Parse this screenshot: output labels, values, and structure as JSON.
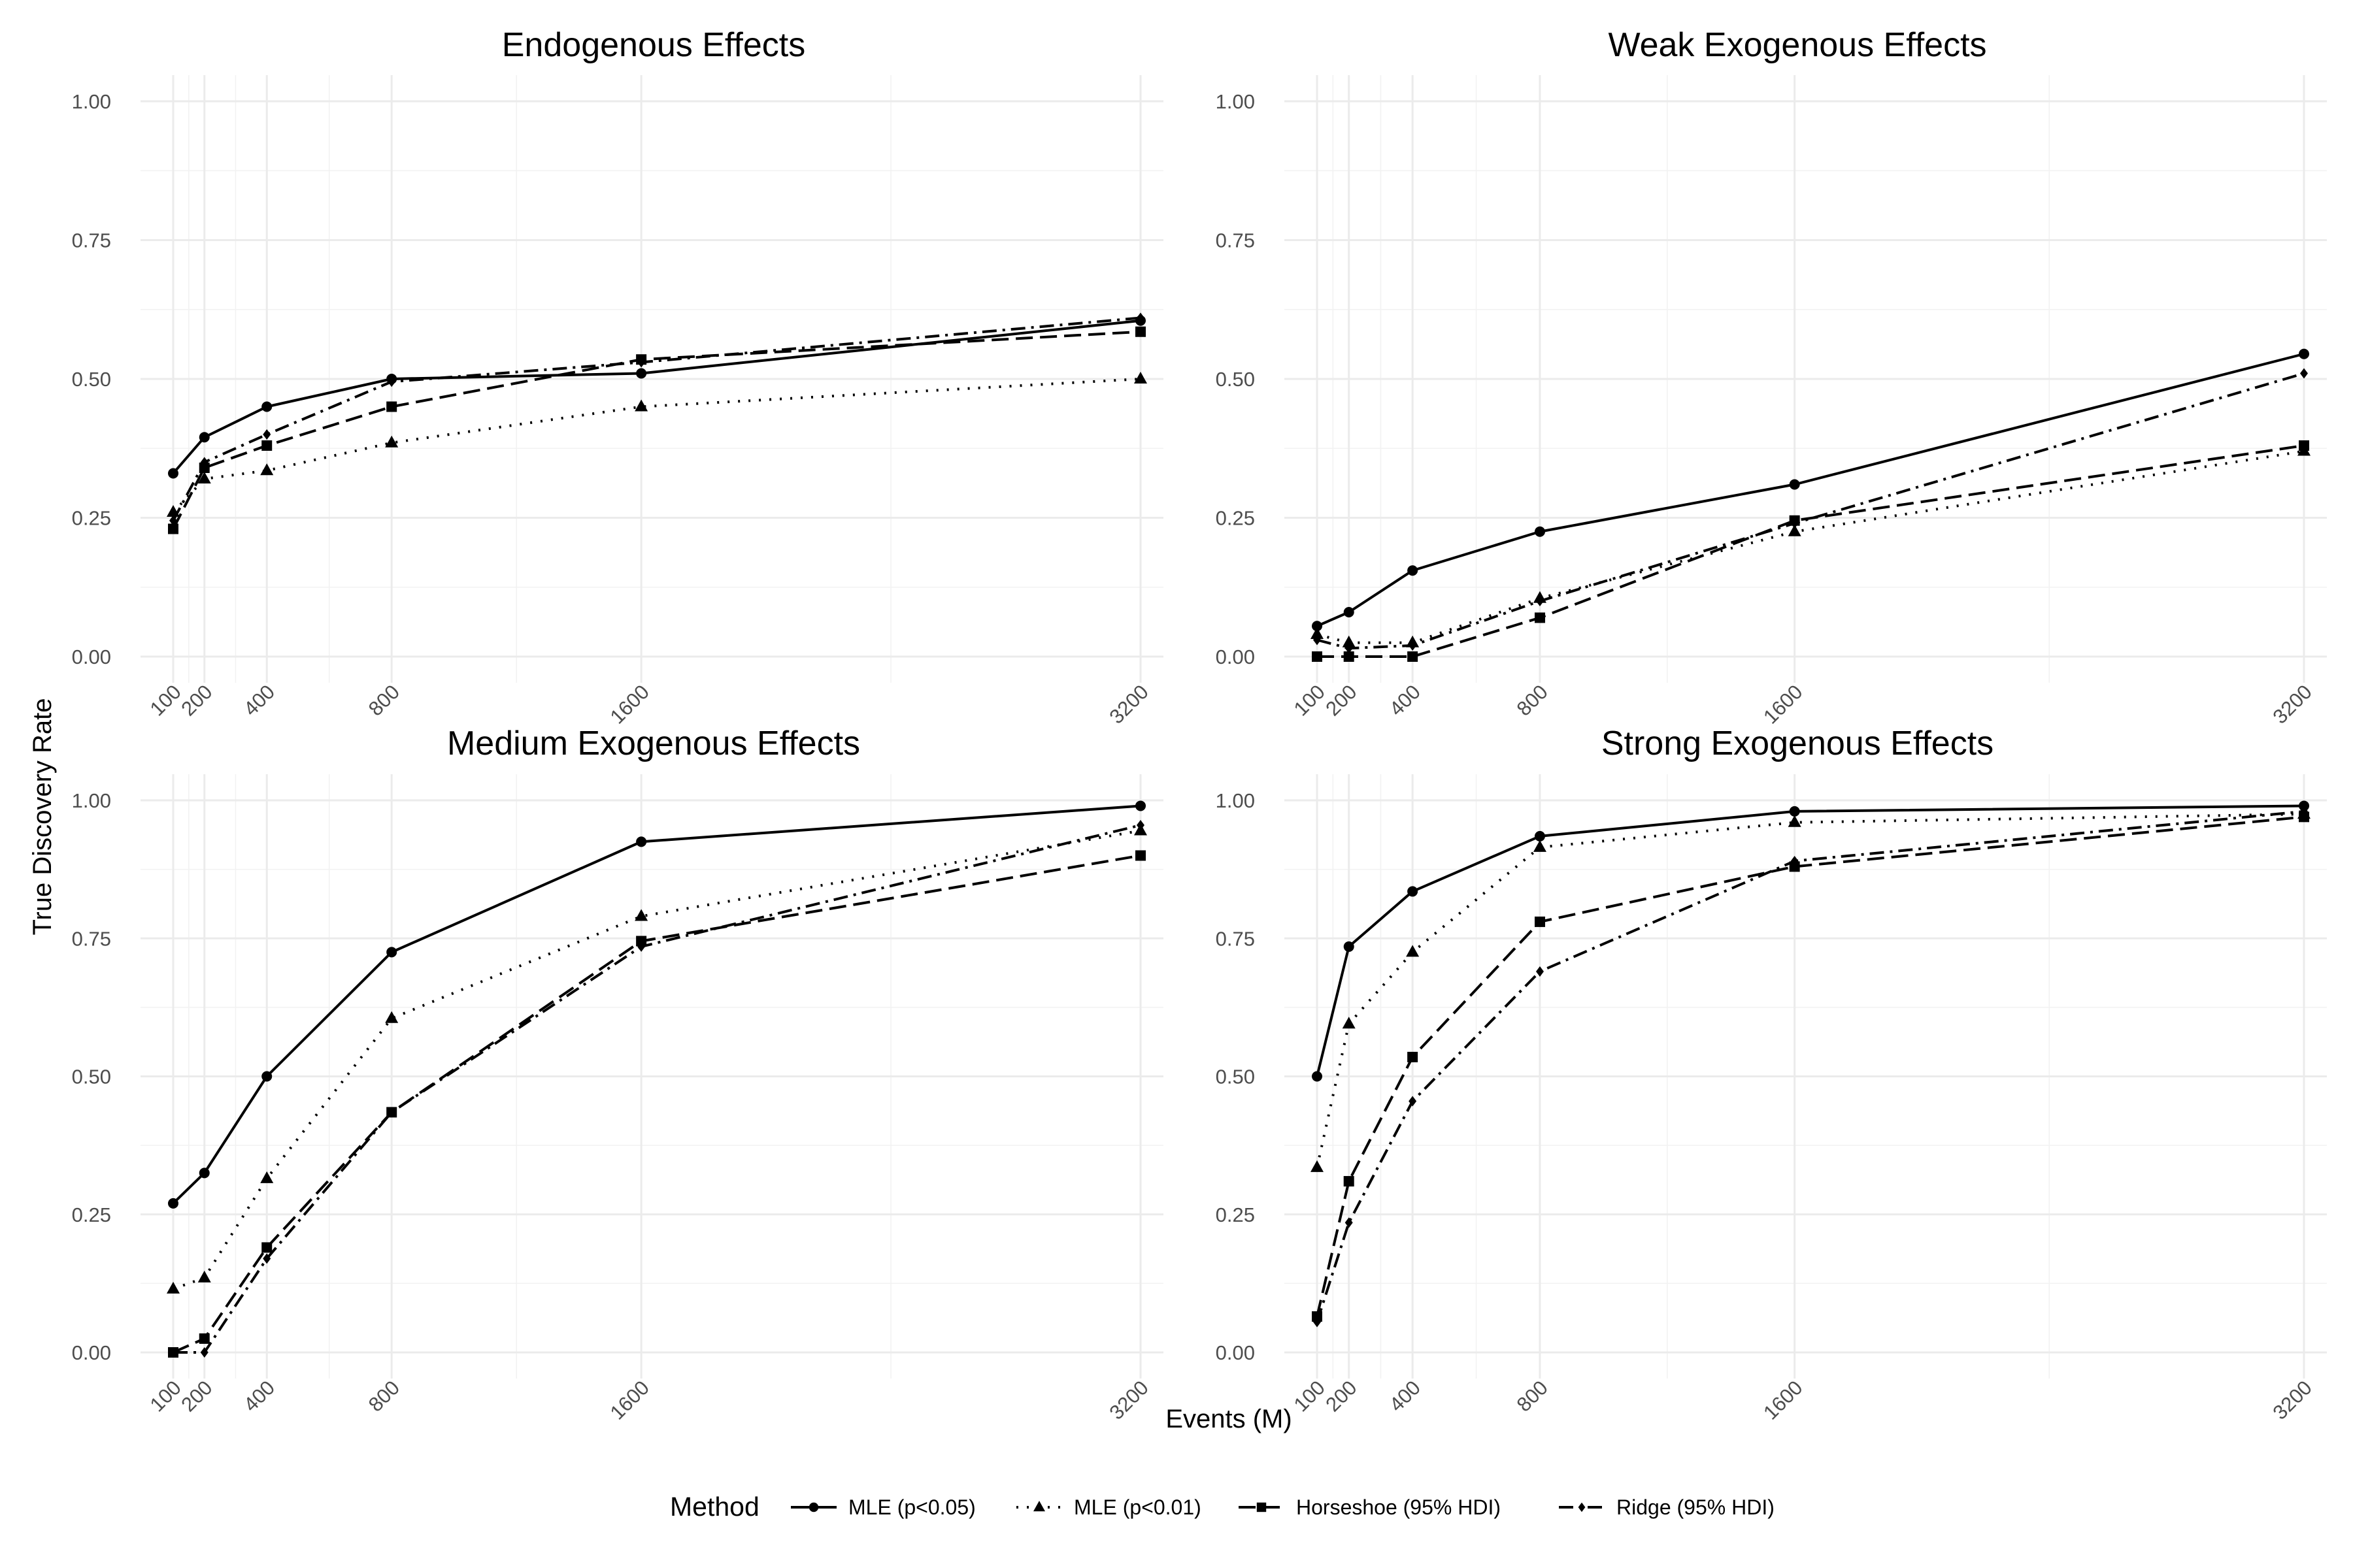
{
  "chart_data": {
    "type": "line",
    "xlabel": "Events (M)",
    "ylabel": "True Discovery Rate",
    "x": [
      100,
      200,
      400,
      800,
      1600,
      3200
    ],
    "x_ticks": [
      "100",
      "200",
      "400",
      "800",
      "1600",
      "3200"
    ],
    "y_ticks": [
      "0.00",
      "0.25",
      "0.50",
      "0.75",
      "1.00"
    ],
    "ylim": [
      0,
      1
    ],
    "grid": true,
    "legend": {
      "title": "Method",
      "placement": "bottom",
      "entries": [
        "MLE (p<0.05)",
        "MLE (p<0.01)",
        "Horseshoe (95% HDI)",
        "Ridge (95% HDI)"
      ]
    },
    "panels": [
      {
        "title": "Endogenous Effects",
        "series": [
          {
            "name": "MLE (p<0.05)",
            "values": [
              0.33,
              0.395,
              0.45,
              0.5,
              0.51,
              0.605
            ]
          },
          {
            "name": "MLE (p<0.01)",
            "values": [
              0.26,
              0.32,
              0.335,
              0.385,
              0.45,
              0.5
            ]
          },
          {
            "name": "Horseshoe (95% HDI)",
            "values": [
              0.23,
              0.34,
              0.38,
              0.45,
              0.535,
              0.585
            ]
          },
          {
            "name": "Ridge (95% HDI)",
            "values": [
              0.245,
              0.35,
              0.4,
              0.495,
              0.53,
              0.61
            ]
          }
        ]
      },
      {
        "title": "Weak Exogenous Effects",
        "series": [
          {
            "name": "MLE (p<0.05)",
            "values": [
              0.055,
              0.08,
              0.155,
              0.225,
              0.31,
              0.545
            ]
          },
          {
            "name": "MLE (p<0.01)",
            "values": [
              0.04,
              0.025,
              0.025,
              0.105,
              0.225,
              0.37
            ]
          },
          {
            "name": "Horseshoe (95% HDI)",
            "values": [
              0.0,
              0.0,
              0.0,
              0.07,
              0.245,
              0.38
            ]
          },
          {
            "name": "Ridge (95% HDI)",
            "values": [
              0.03,
              0.015,
              0.02,
              0.1,
              0.24,
              0.51
            ]
          }
        ]
      },
      {
        "title": "Medium Exogenous Effects",
        "series": [
          {
            "name": "MLE (p<0.05)",
            "values": [
              0.27,
              0.325,
              0.5,
              0.725,
              0.925,
              0.99
            ]
          },
          {
            "name": "MLE (p<0.01)",
            "values": [
              0.115,
              0.135,
              0.315,
              0.605,
              0.79,
              0.945
            ]
          },
          {
            "name": "Horseshoe (95% HDI)",
            "values": [
              0.0,
              0.025,
              0.19,
              0.435,
              0.745,
              0.9
            ]
          },
          {
            "name": "Ridge (95% HDI)",
            "values": [
              0.0,
              0.0,
              0.17,
              0.435,
              0.735,
              0.955
            ]
          }
        ]
      },
      {
        "title": "Strong Exogenous Effects",
        "series": [
          {
            "name": "MLE (p<0.05)",
            "values": [
              0.5,
              0.735,
              0.835,
              0.935,
              0.98,
              0.99
            ]
          },
          {
            "name": "MLE (p<0.01)",
            "values": [
              0.335,
              0.595,
              0.725,
              0.915,
              0.96,
              0.975
            ]
          },
          {
            "name": "Horseshoe (95% HDI)",
            "values": [
              0.065,
              0.31,
              0.535,
              0.78,
              0.88,
              0.97
            ]
          },
          {
            "name": "Ridge (95% HDI)",
            "values": [
              0.055,
              0.235,
              0.455,
              0.69,
              0.89,
              0.98
            ]
          }
        ]
      }
    ]
  }
}
